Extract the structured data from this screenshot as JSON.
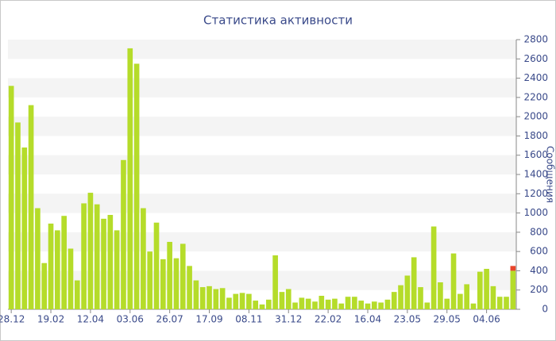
{
  "chart_data": {
    "type": "bar",
    "stacked": true,
    "title": "Статистика активности",
    "y_label": "Сообщения",
    "categories": [
      "28.12",
      null,
      null,
      null,
      null,
      null,
      "19.02",
      null,
      null,
      null,
      null,
      null,
      "12.04",
      null,
      null,
      null,
      null,
      null,
      "03.06",
      null,
      null,
      null,
      null,
      null,
      "26.07",
      null,
      null,
      null,
      null,
      null,
      "17.09",
      null,
      null,
      null,
      null,
      null,
      "08.11",
      null,
      null,
      null,
      null,
      null,
      "31.12",
      null,
      null,
      null,
      null,
      null,
      "22.02",
      null,
      null,
      null,
      null,
      null,
      "16.04",
      null,
      null,
      null,
      null,
      null,
      "23.05",
      null,
      null,
      null,
      null,
      null,
      "29.05",
      null,
      null,
      null,
      null,
      null,
      "04.06",
      null,
      null,
      null,
      null
    ],
    "series": [
      {
        "color": "#b5dc2a",
        "values": [
          2320,
          1940,
          1680,
          2120,
          1050,
          480,
          890,
          820,
          970,
          630,
          300,
          1100,
          1210,
          1090,
          940,
          980,
          820,
          1550,
          2710,
          2550,
          1050,
          600,
          900,
          520,
          700,
          530,
          680,
          450,
          300,
          230,
          240,
          210,
          220,
          120,
          160,
          170,
          160,
          90,
          50,
          100,
          560,
          180,
          210,
          70,
          120,
          110,
          80,
          140,
          100,
          110,
          60,
          130,
          130,
          90,
          60,
          80,
          70,
          100,
          180,
          250,
          350,
          540,
          230,
          70,
          860,
          280,
          110,
          580,
          160,
          260,
          60,
          390,
          420,
          240,
          130,
          130,
          400
        ]
      },
      {
        "color": "#e8452a",
        "values": [
          0,
          0,
          0,
          0,
          0,
          0,
          0,
          0,
          0,
          0,
          0,
          0,
          0,
          0,
          0,
          0,
          0,
          0,
          0,
          0,
          0,
          0,
          0,
          0,
          0,
          0,
          0,
          0,
          0,
          0,
          0,
          0,
          0,
          0,
          0,
          0,
          0,
          0,
          0,
          0,
          0,
          0,
          0,
          0,
          0,
          0,
          0,
          0,
          0,
          0,
          0,
          0,
          0,
          0,
          0,
          0,
          0,
          0,
          0,
          0,
          0,
          0,
          0,
          0,
          0,
          0,
          0,
          0,
          0,
          0,
          0,
          0,
          0,
          0,
          0,
          0,
          50
        ]
      }
    ],
    "ylim": [
      0,
      2800
    ],
    "yticks": [
      0,
      200,
      400,
      600,
      800,
      1000,
      1200,
      1400,
      1600,
      1800,
      2000,
      2200,
      2400,
      2600,
      2800
    ],
    "grid": true
  }
}
